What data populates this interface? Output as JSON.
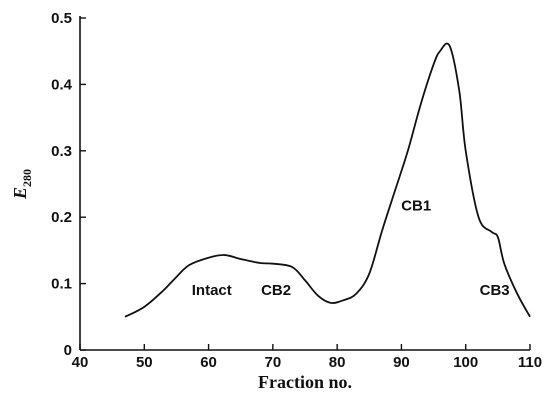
{
  "chart_data": {
    "type": "line",
    "xlabel": "Fraction no.",
    "ylabel": "E",
    "ylabel_subscript": "280",
    "xlim": [
      40,
      110
    ],
    "ylim": [
      0,
      0.5
    ],
    "x_ticks": [
      40,
      50,
      60,
      70,
      80,
      90,
      100,
      110
    ],
    "x_tick_labels": [
      "40",
      "50",
      "60",
      "70",
      "80",
      "90",
      "100",
      "110"
    ],
    "y_ticks": [
      0,
      0.1,
      0.2,
      0.3,
      0.4,
      0.5
    ],
    "y_tick_labels": [
      "0",
      "0.1",
      "0.2",
      "0.3",
      "0.4",
      "0.5"
    ],
    "grid": false,
    "series": [
      {
        "x": [
          47,
          50,
          53,
          55,
          57,
          60,
          62.5,
          65,
          68,
          70,
          73,
          75,
          77,
          79,
          81,
          83,
          85,
          87,
          89,
          91,
          93,
          95,
          96,
          97.5,
          99,
          100,
          102,
          104,
          105,
          106,
          108,
          110
        ],
        "y": [
          0.05,
          0.065,
          0.09,
          0.11,
          0.128,
          0.139,
          0.143,
          0.137,
          0.131,
          0.13,
          0.125,
          0.105,
          0.082,
          0.071,
          0.075,
          0.085,
          0.115,
          0.18,
          0.24,
          0.3,
          0.37,
          0.43,
          0.45,
          0.458,
          0.39,
          0.3,
          0.2,
          0.178,
          0.17,
          0.13,
          0.085,
          0.05
        ]
      }
    ],
    "annotations": [
      {
        "text": "Intact",
        "x": 60.5,
        "y": 0.083
      },
      {
        "text": "CB2",
        "x": 70.5,
        "y": 0.083
      },
      {
        "text": "CB1",
        "x": 92.3,
        "y": 0.21
      },
      {
        "text": "CB3",
        "x": 104.5,
        "y": 0.083
      }
    ]
  }
}
